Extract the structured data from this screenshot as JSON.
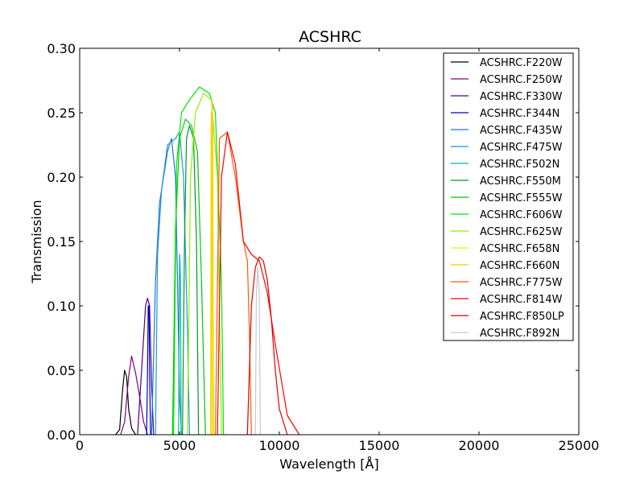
{
  "chart_data": {
    "type": "line",
    "title": "ACSHRC",
    "xlabel": "Wavelength [Å]",
    "ylabel": "Transmission",
    "xlim": [
      0,
      25000
    ],
    "ylim": [
      0,
      0.3
    ],
    "xticks": [
      "0",
      "5000",
      "10000",
      "15000",
      "20000",
      "25000"
    ],
    "yticks": [
      "0.00",
      "0.05",
      "0.10",
      "0.15",
      "0.20",
      "0.25",
      "0.30"
    ],
    "grid": false,
    "legend_position": "top-right",
    "series": [
      {
        "name": "ACSHRC.F220W",
        "color": "#000000",
        "x": [
          1800,
          2000,
          2150,
          2250,
          2350,
          2450,
          2600,
          2800
        ],
        "y": [
          0,
          0.004,
          0.035,
          0.05,
          0.045,
          0.02,
          0.005,
          0
        ]
      },
      {
        "name": "ACSHRC.F250W",
        "color": "#800080",
        "x": [
          2050,
          2250,
          2450,
          2600,
          2800,
          3000,
          3200,
          3400
        ],
        "y": [
          0,
          0.01,
          0.045,
          0.061,
          0.048,
          0.03,
          0.01,
          0
        ]
      },
      {
        "name": "ACSHRC.F330W",
        "color": "#4b0082",
        "x": [
          2900,
          3100,
          3300,
          3400,
          3500,
          3600,
          3700
        ],
        "y": [
          0,
          0.05,
          0.1,
          0.106,
          0.1,
          0.04,
          0
        ]
      },
      {
        "name": "ACSHRC.F344N",
        "color": "#0000cd",
        "x": [
          3350,
          3400,
          3430,
          3470,
          3500,
          3550
        ],
        "y": [
          0,
          0.05,
          0.1,
          0.1,
          0.05,
          0
        ]
      },
      {
        "name": "ACSHRC.F435W",
        "color": "#1e78d2",
        "x": [
          3600,
          3800,
          4000,
          4200,
          4400,
          4600,
          4800,
          4900,
          5000,
          5100
        ],
        "y": [
          0,
          0.12,
          0.18,
          0.2,
          0.22,
          0.23,
          0.2,
          0.12,
          0.03,
          0
        ]
      },
      {
        "name": "ACSHRC.F475W",
        "color": "#1e96dc",
        "x": [
          3800,
          3900,
          4100,
          4400,
          4800,
          5000,
          5200,
          5400,
          5500
        ],
        "y": [
          0,
          0.14,
          0.19,
          0.225,
          0.23,
          0.235,
          0.2,
          0.08,
          0
        ]
      },
      {
        "name": "ACSHRC.F502N",
        "color": "#00b4a0",
        "x": [
          4950,
          4990,
          5010,
          5050,
          5080
        ],
        "y": [
          0,
          0.12,
          0.14,
          0.12,
          0
        ]
      },
      {
        "name": "ACSHRC.F550M",
        "color": "#009632",
        "x": [
          5150,
          5250,
          5350,
          5500,
          5700,
          5850,
          5950
        ],
        "y": [
          0,
          0.15,
          0.23,
          0.24,
          0.23,
          0.15,
          0
        ]
      },
      {
        "name": "ACSHRC.F555W",
        "color": "#00c800",
        "x": [
          4650,
          4800,
          5000,
          5300,
          5600,
          5900,
          6100,
          6300
        ],
        "y": [
          0,
          0.16,
          0.23,
          0.245,
          0.24,
          0.22,
          0.12,
          0
        ]
      },
      {
        "name": "ACSHRC.F606W",
        "color": "#00e600",
        "x": [
          4700,
          4850,
          5100,
          5500,
          6000,
          6500,
          6800,
          7100,
          7200
        ],
        "y": [
          0,
          0.21,
          0.25,
          0.26,
          0.27,
          0.265,
          0.25,
          0.12,
          0
        ]
      },
      {
        "name": "ACSHRC.F625W",
        "color": "#8cf000",
        "x": [
          5400,
          5550,
          5800,
          6200,
          6600,
          6900,
          7100
        ],
        "y": [
          0,
          0.2,
          0.25,
          0.265,
          0.26,
          0.2,
          0
        ]
      },
      {
        "name": "ACSHRC.F658N",
        "color": "#dcf000",
        "x": [
          6560,
          6580,
          6600,
          6620,
          6650
        ],
        "y": [
          0,
          0.24,
          0.25,
          0.24,
          0
        ]
      },
      {
        "name": "ACSHRC.F660N",
        "color": "#ffc800",
        "x": [
          6580,
          6610,
          6640,
          6670,
          6700
        ],
        "y": [
          0,
          0.24,
          0.26,
          0.24,
          0
        ]
      },
      {
        "name": "ACSHRC.F775W",
        "color": "#ff5a00",
        "x": [
          6800,
          7000,
          7400,
          7800,
          8200,
          8400,
          8500,
          8600
        ],
        "y": [
          0,
          0.23,
          0.235,
          0.2,
          0.15,
          0.135,
          0.08,
          0
        ]
      },
      {
        "name": "ACSHRC.F814W",
        "color": "#ff0000",
        "x": [
          6900,
          7100,
          7400,
          7800,
          8200,
          8600,
          9000,
          9400,
          9800,
          10400,
          11000
        ],
        "y": [
          0,
          0.2,
          0.235,
          0.21,
          0.15,
          0.14,
          0.135,
          0.11,
          0.07,
          0.015,
          0
        ]
      },
      {
        "name": "ACSHRC.F850LP",
        "color": "#dc0000",
        "x": [
          8400,
          8600,
          8800,
          9000,
          9200,
          9400,
          9600,
          9800,
          10000,
          10400
        ],
        "y": [
          0,
          0.1,
          0.13,
          0.138,
          0.135,
          0.12,
          0.09,
          0.05,
          0.02,
          0
        ]
      },
      {
        "name": "ACSHRC.F892N",
        "color": "#c8c8c8",
        "x": [
          8800,
          8850,
          8920,
          8990,
          9050
        ],
        "y": [
          0,
          0.11,
          0.13,
          0.11,
          0
        ]
      }
    ]
  }
}
